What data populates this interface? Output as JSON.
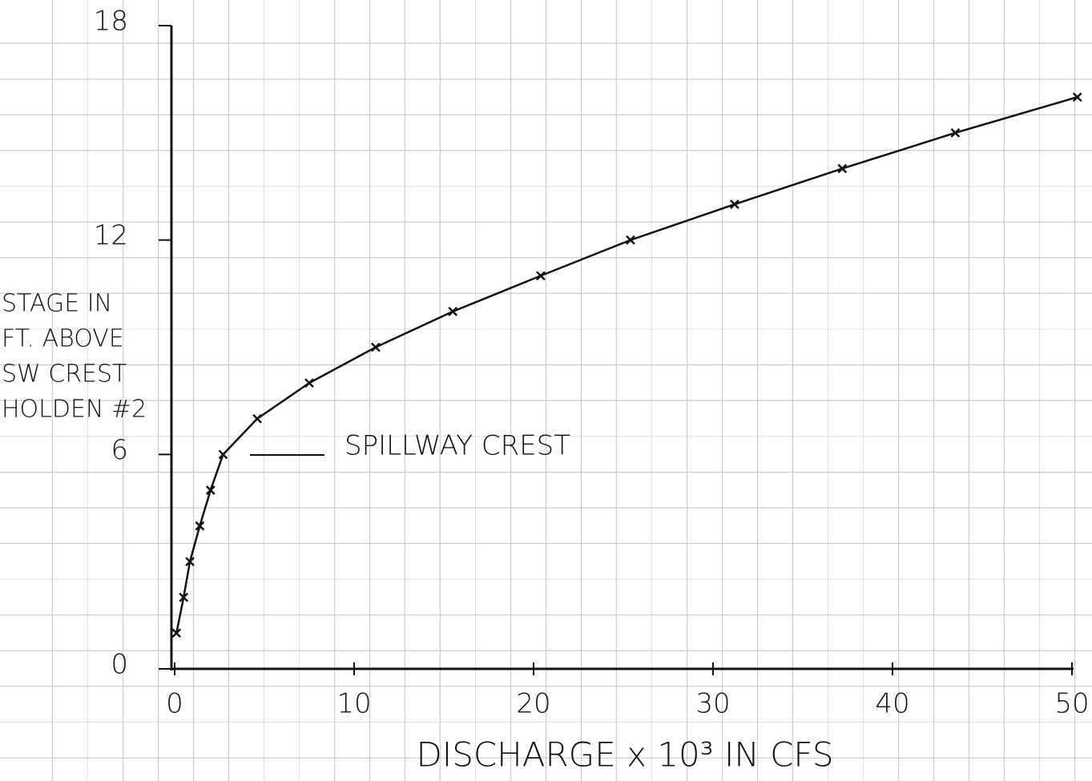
{
  "chart_data": {
    "type": "line",
    "x_label": "DISCHARGE x 10³ IN CFS",
    "y_label": [
      "STAGE IN",
      "FT. ABOVE",
      "SW CREST",
      "HOLDEN #2"
    ],
    "annotation": "SPILLWAY CREST",
    "x": [
      0.1,
      0.5,
      0.85,
      1.4,
      2.0,
      2.7,
      4.6,
      7.5,
      11.2,
      15.5,
      20.4,
      25.4,
      31.2,
      37.2,
      43.5,
      50.3
    ],
    "values": [
      1,
      2,
      3,
      4,
      5,
      6,
      7,
      8,
      9,
      10,
      11,
      12,
      13,
      14,
      15,
      16
    ],
    "color": "#111111",
    "xlim": [
      0,
      50
    ],
    "xticks": [
      0,
      10,
      20,
      30,
      40,
      50
    ],
    "ylim": [
      0,
      18
    ],
    "yticks": [
      0,
      6,
      12,
      18
    ]
  }
}
